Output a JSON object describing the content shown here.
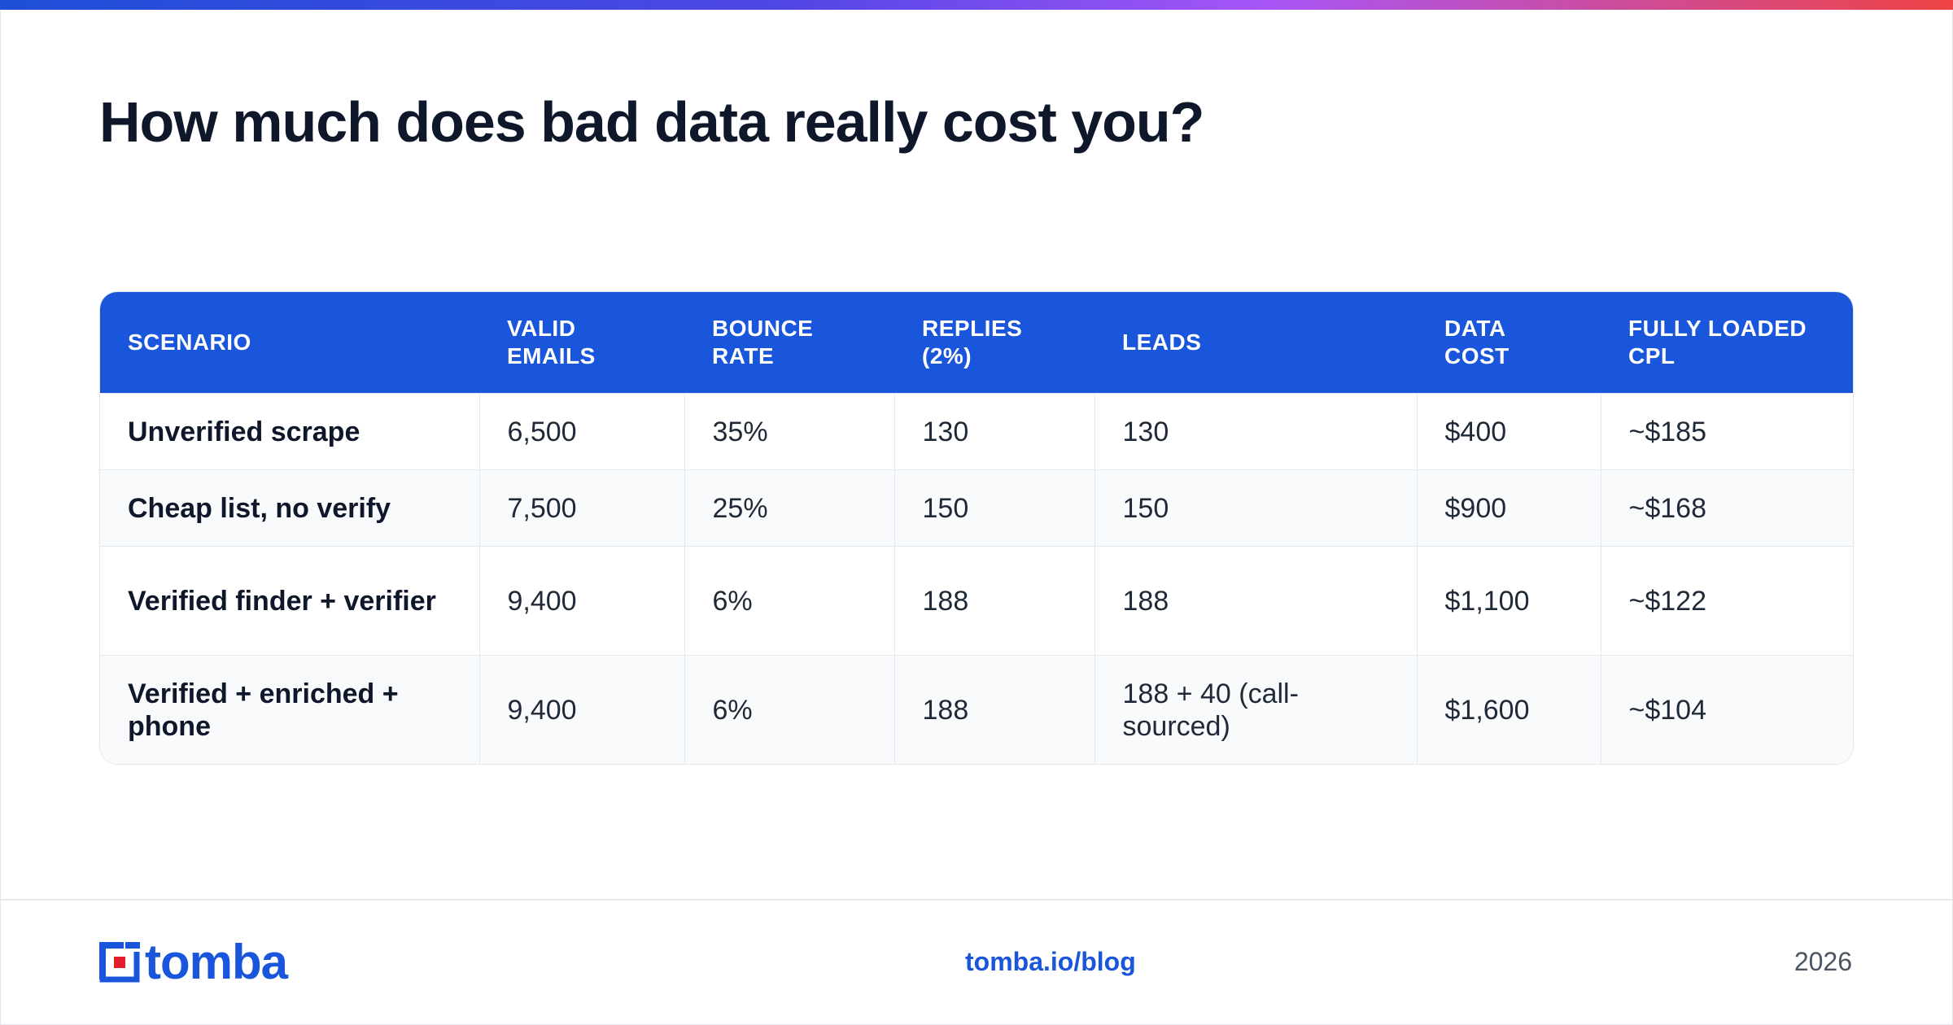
{
  "title": "How much does bad data really cost you?",
  "table": {
    "headers": [
      [
        "SCENARIO",
        ""
      ],
      [
        "VALID",
        "EMAILS"
      ],
      [
        "BOUNCE",
        "RATE"
      ],
      [
        "REPLIES",
        "(2%)"
      ],
      [
        "LEADS",
        ""
      ],
      [
        "DATA",
        "COST"
      ],
      [
        "FULLY LOADED",
        "CPL"
      ]
    ],
    "rows": [
      [
        "Unverified scrape",
        "6,500",
        "35%",
        "130",
        "130",
        "$400",
        "~$185"
      ],
      [
        "Cheap list, no verify",
        "7,500",
        "25%",
        "150",
        "150",
        "$900",
        "~$168"
      ],
      [
        "Verified finder + verifier",
        "9,400",
        "6%",
        "188",
        "188",
        "$1,100",
        "~$122"
      ],
      [
        "Verified + enriched + phone",
        "9,400",
        "6%",
        "188",
        "188 + 40 (call-sourced)",
        "$1,600",
        "~$104"
      ]
    ]
  },
  "footer": {
    "logo_text": "tomba",
    "blog_link": "tomba.io/blog",
    "year": "2026"
  },
  "colors": {
    "accent": "#1a56db",
    "logo_red": "#e11d2e",
    "row_alt": "#f8fafc"
  },
  "icons": {
    "logo": "tomba-logo-icon"
  }
}
